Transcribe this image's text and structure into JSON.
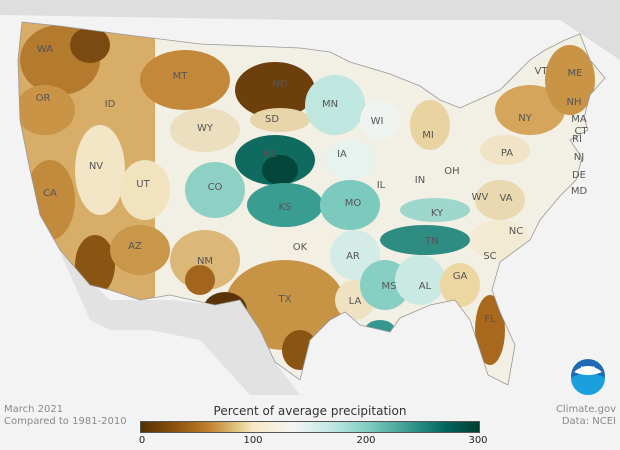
{
  "map": {
    "title": "Percent of average precipitation",
    "states": [
      "WA",
      "OR",
      "CA",
      "NV",
      "ID",
      "MT",
      "WY",
      "UT",
      "AZ",
      "CO",
      "NM",
      "ND",
      "SD",
      "NE",
      "KS",
      "OK",
      "TX",
      "MN",
      "IA",
      "MO",
      "AR",
      "LA",
      "WI",
      "IL",
      "MS",
      "MI",
      "IN",
      "KY",
      "TN",
      "AL",
      "GA",
      "FL",
      "OH",
      "WV",
      "VA",
      "NC",
      "SC",
      "PA",
      "NY",
      "VT",
      "NH",
      "ME",
      "MA",
      "CT",
      "RI",
      "NJ",
      "DE",
      "MD"
    ]
  },
  "legend": {
    "title": "Percent of average precipitation",
    "ticks": [
      "0",
      "100",
      "200",
      "300"
    ],
    "range": [
      0,
      300
    ],
    "colors": [
      "#543005",
      "#bf812d",
      "#f6e8c3",
      "#f5f5f5",
      "#80cdc1",
      "#01665e",
      "#003c30"
    ]
  },
  "footer": {
    "date": "March 2021",
    "baseline": "Compared to 1981-2010",
    "source": "Climate.gov",
    "data": "Data: NCEI"
  },
  "logo": "NOAA"
}
